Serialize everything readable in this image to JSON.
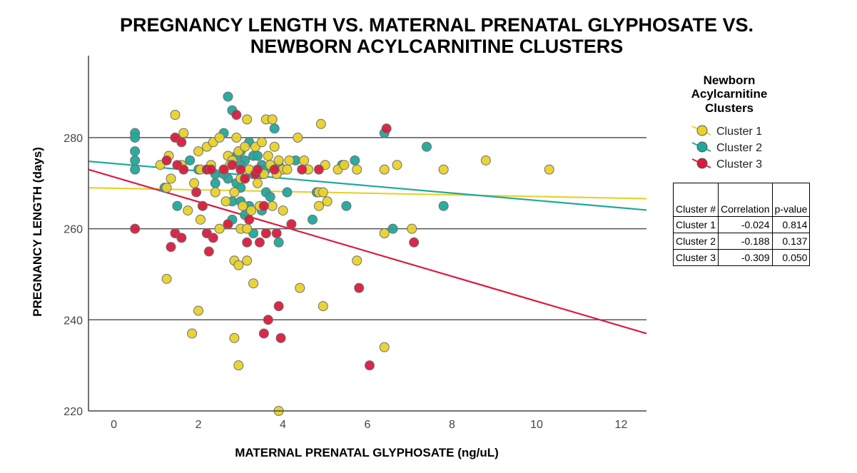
{
  "chart_data": {
    "type": "scatter",
    "title_lines": [
      "PREGNANCY LENGTH VS. MATERNAL PRENATAL GLYPHOSATE  VS.",
      "NEWBORN ACYLCARNITINE CLUSTERS"
    ],
    "xlabel": "MATERNAL PRENATAL GLYPHOSATE (ng/uL)",
    "ylabel": "PREGNANCY LENGTH (days)",
    "xlim": [
      -0.6,
      12.6
    ],
    "ylim": [
      220,
      298
    ],
    "xticks": [
      0,
      2,
      4,
      6,
      8,
      10,
      12
    ],
    "yticks": [
      220,
      240,
      260,
      280
    ],
    "grid": "horizontal",
    "legend": {
      "title_lines": [
        "Newborn",
        "Acylcarnitine",
        "Clusters"
      ],
      "position": "right"
    },
    "series": [
      {
        "name": "Cluster 1",
        "color": "#e8d22c",
        "fit": {
          "x": [
            -0.6,
            12.6
          ],
          "y": [
            269.0,
            266.6
          ]
        },
        "points": [
          [
            1.45,
            285
          ],
          [
            1.65,
            281
          ],
          [
            1.1,
            274
          ],
          [
            1.3,
            276
          ],
          [
            1.6,
            274
          ],
          [
            1.35,
            271
          ],
          [
            1.25,
            269
          ],
          [
            2.0,
            277
          ],
          [
            2.2,
            278
          ],
          [
            2.35,
            279
          ],
          [
            2.5,
            280
          ],
          [
            2.7,
            276
          ],
          [
            2.8,
            275
          ],
          [
            2.9,
            280
          ],
          [
            2.95,
            277
          ],
          [
            3.1,
            278
          ],
          [
            3.15,
            284
          ],
          [
            3.35,
            278
          ],
          [
            3.5,
            279
          ],
          [
            3.6,
            284
          ],
          [
            3.75,
            284
          ],
          [
            3.8,
            278
          ],
          [
            3.65,
            276
          ],
          [
            3.7,
            274
          ],
          [
            3.9,
            275
          ],
          [
            4.0,
            273
          ],
          [
            4.15,
            275
          ],
          [
            4.35,
            280
          ],
          [
            4.5,
            275
          ],
          [
            4.9,
            283
          ],
          [
            2.05,
            273
          ],
          [
            2.3,
            274
          ],
          [
            2.6,
            273
          ],
          [
            2.75,
            274
          ],
          [
            3.0,
            271
          ],
          [
            3.2,
            273
          ],
          [
            3.4,
            270
          ],
          [
            3.55,
            272
          ],
          [
            3.85,
            272
          ],
          [
            4.1,
            273
          ],
          [
            4.6,
            273
          ],
          [
            5.0,
            274
          ],
          [
            5.3,
            273
          ],
          [
            5.45,
            274
          ],
          [
            5.75,
            273
          ],
          [
            6.4,
            273
          ],
          [
            6.7,
            274
          ],
          [
            7.8,
            273
          ],
          [
            8.8,
            275
          ],
          [
            10.3,
            273
          ],
          [
            1.9,
            270
          ],
          [
            2.1,
            265
          ],
          [
            2.4,
            268
          ],
          [
            2.65,
            266
          ],
          [
            2.85,
            268
          ],
          [
            3.05,
            265
          ],
          [
            3.25,
            264
          ],
          [
            3.45,
            265
          ],
          [
            3.75,
            265
          ],
          [
            4.0,
            264
          ],
          [
            4.85,
            268
          ],
          [
            4.95,
            268
          ],
          [
            5.05,
            266
          ],
          [
            1.75,
            264
          ],
          [
            2.05,
            262
          ],
          [
            2.5,
            260
          ],
          [
            2.7,
            261
          ],
          [
            3.0,
            260
          ],
          [
            3.15,
            260
          ],
          [
            3.6,
            259
          ],
          [
            4.85,
            265
          ],
          [
            1.25,
            249
          ],
          [
            2.0,
            242
          ],
          [
            1.85,
            237
          ],
          [
            2.85,
            236
          ],
          [
            2.85,
            253
          ],
          [
            2.95,
            252
          ],
          [
            3.15,
            253
          ],
          [
            3.3,
            248
          ],
          [
            2.95,
            230
          ],
          [
            3.9,
            220
          ],
          [
            4.4,
            247
          ],
          [
            4.95,
            243
          ],
          [
            5.75,
            253
          ],
          [
            6.4,
            234
          ],
          [
            6.4,
            259
          ],
          [
            7.05,
            260
          ]
        ]
      },
      {
        "name": "Cluster 2",
        "color": "#1fa99b",
        "fit": {
          "x": [
            -0.6,
            12.6
          ],
          "y": [
            274.8,
            264.1
          ]
        },
        "points": [
          [
            0.5,
            281
          ],
          [
            0.5,
            280
          ],
          [
            0.5,
            277
          ],
          [
            0.5,
            275
          ],
          [
            0.5,
            273
          ],
          [
            1.5,
            265
          ],
          [
            1.8,
            275
          ],
          [
            2.0,
            273
          ],
          [
            2.2,
            273
          ],
          [
            2.4,
            272
          ],
          [
            2.6,
            281
          ],
          [
            2.7,
            289
          ],
          [
            2.8,
            286
          ],
          [
            2.9,
            276
          ],
          [
            3.0,
            277
          ],
          [
            3.1,
            275
          ],
          [
            3.2,
            279
          ],
          [
            3.3,
            276
          ],
          [
            3.4,
            276
          ],
          [
            3.5,
            274
          ],
          [
            3.6,
            273
          ],
          [
            3.8,
            282
          ],
          [
            2.7,
            271
          ],
          [
            2.9,
            270
          ],
          [
            3.0,
            269
          ],
          [
            3.1,
            271
          ],
          [
            3.3,
            272
          ],
          [
            3.5,
            272
          ],
          [
            3.6,
            268
          ],
          [
            3.7,
            267
          ],
          [
            3.9,
            274
          ],
          [
            4.1,
            268
          ],
          [
            4.3,
            275
          ],
          [
            4.8,
            268
          ],
          [
            5.4,
            274
          ],
          [
            5.7,
            275
          ],
          [
            2.8,
            266
          ],
          [
            3.0,
            266
          ],
          [
            3.2,
            265
          ],
          [
            3.1,
            263
          ],
          [
            3.3,
            259
          ],
          [
            3.5,
            264
          ],
          [
            2.8,
            262
          ],
          [
            3.9,
            257
          ],
          [
            4.7,
            262
          ],
          [
            5.5,
            265
          ],
          [
            6.4,
            281
          ],
          [
            6.6,
            260
          ],
          [
            7.4,
            278
          ],
          [
            7.8,
            265
          ],
          [
            1.2,
            269
          ],
          [
            2.4,
            270
          ],
          [
            2.6,
            272
          ],
          [
            3.0,
            274
          ]
        ]
      },
      {
        "name": "Cluster 3",
        "color": "#d81c3f",
        "fit": {
          "x": [
            -0.6,
            12.6
          ],
          "y": [
            273.0,
            237.0
          ]
        },
        "points": [
          [
            0.5,
            260
          ],
          [
            1.25,
            275
          ],
          [
            1.45,
            280
          ],
          [
            1.6,
            279
          ],
          [
            1.5,
            274
          ],
          [
            1.65,
            273
          ],
          [
            1.35,
            256
          ],
          [
            1.45,
            259
          ],
          [
            1.6,
            258
          ],
          [
            1.95,
            268
          ],
          [
            2.1,
            265
          ],
          [
            2.2,
            273
          ],
          [
            2.3,
            273
          ],
          [
            2.35,
            258
          ],
          [
            2.25,
            255
          ],
          [
            2.8,
            274
          ],
          [
            2.9,
            285
          ],
          [
            3.0,
            273
          ],
          [
            3.1,
            271
          ],
          [
            3.2,
            262
          ],
          [
            3.35,
            272
          ],
          [
            3.4,
            273
          ],
          [
            3.55,
            265
          ],
          [
            3.55,
            237
          ],
          [
            3.65,
            240
          ],
          [
            3.6,
            259
          ],
          [
            3.45,
            257
          ],
          [
            3.15,
            257
          ],
          [
            3.85,
            259
          ],
          [
            3.9,
            243
          ],
          [
            3.95,
            236
          ],
          [
            4.2,
            261
          ],
          [
            4.45,
            273
          ],
          [
            4.85,
            273
          ],
          [
            5.8,
            247
          ],
          [
            6.05,
            230
          ],
          [
            6.45,
            282
          ],
          [
            7.1,
            257
          ],
          [
            2.7,
            261
          ],
          [
            2.2,
            259
          ],
          [
            3.8,
            273
          ],
          [
            2.6,
            273
          ]
        ]
      }
    ],
    "stats_table": {
      "headers": [
        "Cluster #",
        "Correlation",
        "p-value"
      ],
      "rows": [
        [
          "Cluster 1",
          "-0.024",
          "0.814"
        ],
        [
          "Cluster 2",
          "-0.188",
          "0.137"
        ],
        [
          "Cluster 3",
          "-0.309",
          "0.050"
        ]
      ]
    }
  }
}
